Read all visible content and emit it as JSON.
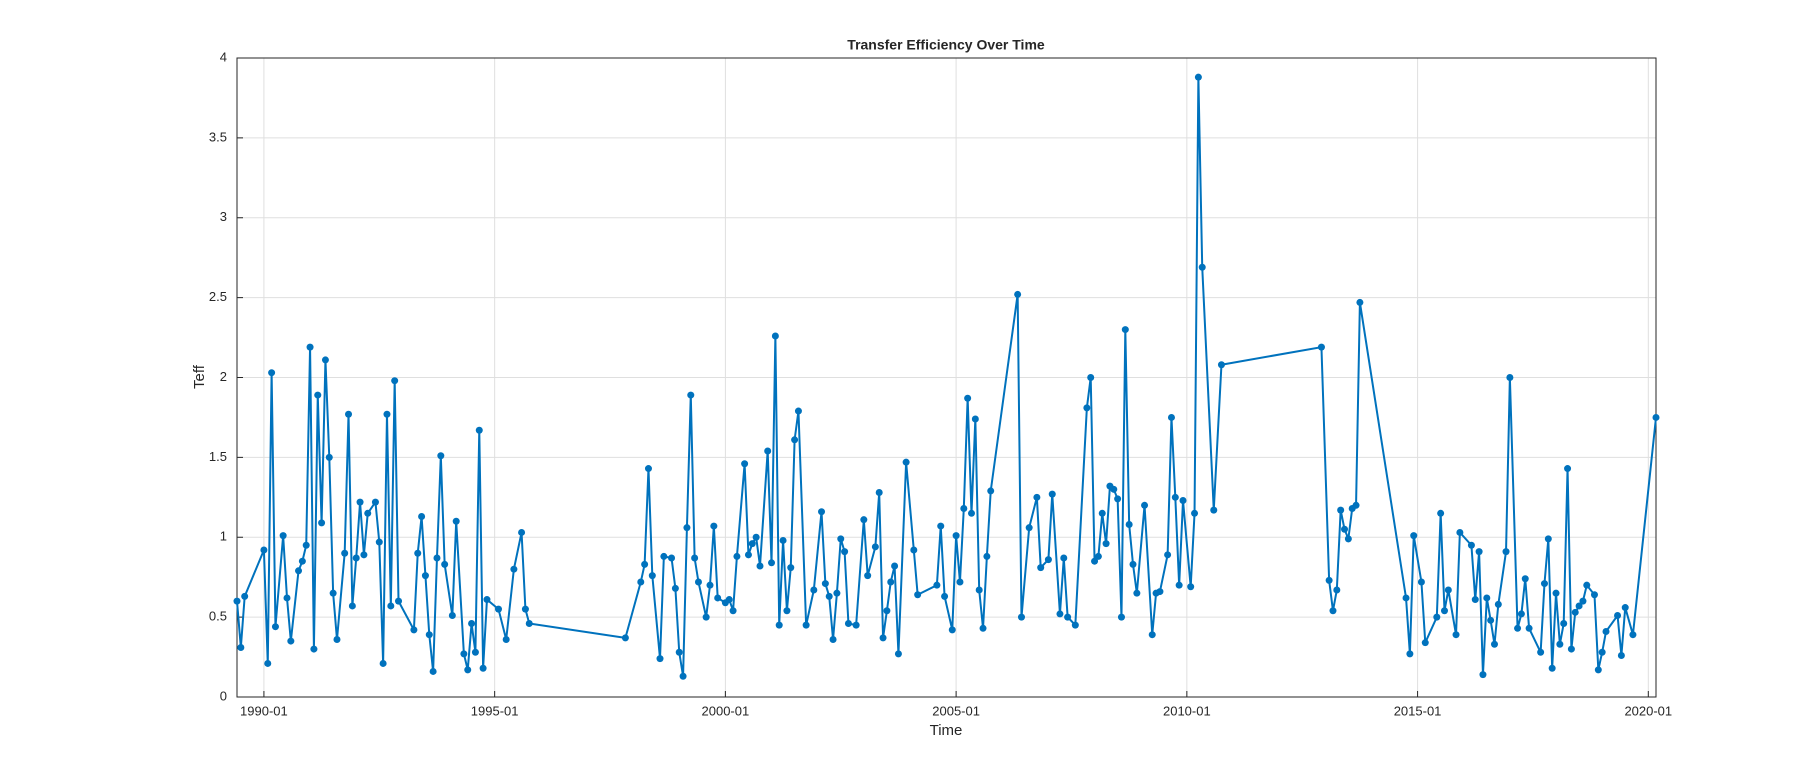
{
  "chart_data": {
    "type": "line",
    "title": "Transfer Efficiency Over Time",
    "x_label": "Time",
    "y_label": "Teff",
    "x": [
      "1989-06",
      "1989-07",
      "1989-08",
      "1990-01",
      "1990-02",
      "1990-03",
      "1990-04",
      "1990-06",
      "1990-07",
      "1990-08",
      "1990-10",
      "1990-11",
      "1990-12",
      "1991-01",
      "1991-02",
      "1991-03",
      "1991-04",
      "1991-05",
      "1991-06",
      "1991-07",
      "1991-08",
      "1991-10",
      "1991-11",
      "1991-12",
      "1992-01",
      "1992-02",
      "1992-03",
      "1992-04",
      "1992-06",
      "1992-07",
      "1992-08",
      "1992-09",
      "1992-10",
      "1992-11",
      "1992-12",
      "1993-04",
      "1993-05",
      "1993-06",
      "1993-07",
      "1993-08",
      "1993-09",
      "1993-10",
      "1993-11",
      "1993-12",
      "1994-02",
      "1994-03",
      "1994-05",
      "1994-06",
      "1994-07",
      "1994-08",
      "1994-09",
      "1994-10",
      "1994-11",
      "1995-02",
      "1995-04",
      "1995-06",
      "1995-08",
      "1995-09",
      "1995-10",
      "1997-11",
      "1998-03",
      "1998-04",
      "1998-05",
      "1998-06",
      "1998-08",
      "1998-09",
      "1998-11",
      "1998-12",
      "1999-01",
      "1999-02",
      "1999-03",
      "1999-04",
      "1999-05",
      "1999-06",
      "1999-08",
      "1999-09",
      "1999-10",
      "1999-11",
      "2000-01",
      "2000-02",
      "2000-03",
      "2000-04",
      "2000-06",
      "2000-07",
      "2000-08",
      "2000-09",
      "2000-10",
      "2000-12",
      "2001-01",
      "2001-02",
      "2001-03",
      "2001-04",
      "2001-05",
      "2001-06",
      "2001-07",
      "2001-08",
      "2001-10",
      "2001-12",
      "2002-02",
      "2002-03",
      "2002-04",
      "2002-05",
      "2002-06",
      "2002-07",
      "2002-08",
      "2002-09",
      "2002-11",
      "2003-01",
      "2003-02",
      "2003-04",
      "2003-05",
      "2003-06",
      "2003-07",
      "2003-08",
      "2003-09",
      "2003-10",
      "2003-12",
      "2004-02",
      "2004-03",
      "2004-08",
      "2004-09",
      "2004-10",
      "2004-12",
      "2005-01",
      "2005-02",
      "2005-03",
      "2005-04",
      "2005-05",
      "2005-06",
      "2005-07",
      "2005-08",
      "2005-09",
      "2005-10",
      "2006-05",
      "2006-06",
      "2006-08",
      "2006-10",
      "2006-11",
      "2007-01",
      "2007-02",
      "2007-04",
      "2007-05",
      "2007-06",
      "2007-08",
      "2007-11",
      "2007-12",
      "2008-01",
      "2008-02",
      "2008-03",
      "2008-04",
      "2008-05",
      "2008-06",
      "2008-07",
      "2008-08",
      "2008-09",
      "2008-10",
      "2008-11",
      "2008-12",
      "2009-02",
      "2009-04",
      "2009-05",
      "2009-06",
      "2009-08",
      "2009-09",
      "2009-10",
      "2009-11",
      "2009-12",
      "2010-02",
      "2010-03",
      "2010-04",
      "2010-05",
      "2010-08",
      "2010-10",
      "2012-12",
      "2013-02",
      "2013-03",
      "2013-04",
      "2013-05",
      "2013-06",
      "2013-07",
      "2013-08",
      "2013-09",
      "2013-10",
      "2014-10",
      "2014-11",
      "2014-12",
      "2015-02",
      "2015-03",
      "2015-06",
      "2015-07",
      "2015-08",
      "2015-09",
      "2015-11",
      "2015-12",
      "2016-03",
      "2016-04",
      "2016-05",
      "2016-06",
      "2016-07",
      "2016-08",
      "2016-09",
      "2016-10",
      "2016-12",
      "2017-01",
      "2017-03",
      "2017-04",
      "2017-05",
      "2017-06",
      "2017-09",
      "2017-10",
      "2017-11",
      "2017-12",
      "2018-01",
      "2018-02",
      "2018-03",
      "2018-04",
      "2018-05",
      "2018-06",
      "2018-07",
      "2018-08",
      "2018-09",
      "2018-11",
      "2018-12",
      "2019-01",
      "2019-02",
      "2019-05",
      "2019-06",
      "2019-07",
      "2019-09",
      "2020-03"
    ],
    "series": [
      {
        "name": "Teff",
        "color": "#0072bd",
        "values": [
          0.6,
          0.31,
          0.63,
          0.92,
          0.21,
          2.03,
          0.44,
          1.01,
          0.62,
          0.35,
          0.79,
          0.85,
          0.95,
          2.19,
          0.3,
          1.89,
          1.09,
          2.11,
          1.5,
          0.65,
          0.36,
          0.9,
          1.77,
          0.57,
          0.87,
          1.22,
          0.89,
          1.15,
          1.22,
          0.97,
          0.21,
          1.77,
          0.57,
          1.98,
          0.6,
          0.42,
          0.9,
          1.13,
          0.76,
          0.39,
          0.16,
          0.87,
          1.51,
          0.83,
          0.51,
          1.1,
          0.27,
          0.17,
          0.46,
          0.28,
          1.67,
          0.18,
          0.61,
          0.55,
          0.36,
          0.8,
          1.03,
          0.55,
          0.46,
          0.37,
          0.72,
          0.83,
          1.43,
          0.76,
          0.24,
          0.88,
          0.87,
          0.68,
          0.28,
          0.13,
          1.06,
          1.89,
          0.87,
          0.72,
          0.5,
          0.7,
          1.07,
          0.62,
          0.59,
          0.61,
          0.54,
          0.88,
          1.46,
          0.89,
          0.96,
          1.0,
          0.82,
          1.54,
          0.84,
          2.26,
          0.45,
          0.98,
          0.54,
          0.81,
          1.61,
          1.79,
          0.45,
          0.67,
          1.16,
          0.71,
          0.63,
          0.36,
          0.65,
          0.99,
          0.91,
          0.46,
          0.45,
          1.11,
          0.76,
          0.94,
          1.28,
          0.37,
          0.54,
          0.72,
          0.82,
          0.27,
          1.47,
          0.92,
          0.64,
          0.7,
          1.07,
          0.63,
          0.42,
          1.01,
          0.72,
          1.18,
          1.87,
          1.15,
          1.74,
          0.67,
          0.43,
          0.88,
          1.29,
          2.52,
          0.5,
          1.06,
          1.25,
          0.81,
          0.86,
          1.27,
          0.52,
          0.87,
          0.5,
          0.45,
          1.81,
          2.0,
          0.85,
          0.88,
          1.15,
          0.96,
          1.32,
          1.3,
          1.24,
          0.5,
          2.3,
          1.08,
          0.83,
          0.65,
          1.2,
          0.39,
          0.65,
          0.66,
          0.89,
          1.75,
          1.25,
          0.7,
          1.23,
          0.69,
          1.15,
          3.88,
          2.69,
          1.17,
          2.08,
          2.19,
          0.73,
          0.54,
          0.67,
          1.17,
          1.05,
          0.99,
          1.18,
          1.2,
          2.47,
          0.62,
          0.27,
          1.01,
          0.72,
          0.34,
          0.5,
          1.15,
          0.54,
          0.67,
          0.39,
          1.03,
          0.95,
          0.61,
          0.91,
          0.14,
          0.62,
          0.48,
          0.33,
          0.58,
          0.91,
          2.0,
          0.43,
          0.52,
          0.74,
          0.43,
          0.28,
          0.71,
          0.99,
          0.18,
          0.65,
          0.33,
          0.46,
          1.43,
          0.3,
          0.53,
          0.57,
          0.6,
          0.7,
          0.64,
          0.17,
          0.28,
          0.41,
          0.51,
          0.26,
          0.56,
          0.39,
          1.75
        ]
      }
    ],
    "xlim": [
      "1989-06",
      "2020-03"
    ],
    "xticks": [
      "1990-01",
      "1995-01",
      "2000-01",
      "2005-01",
      "2010-01",
      "2015-01",
      "2020-01"
    ],
    "ylim": [
      0,
      4
    ],
    "yticks": [
      0,
      0.5,
      1,
      1.5,
      2,
      2.5,
      3,
      3.5,
      4
    ],
    "grid": true
  }
}
